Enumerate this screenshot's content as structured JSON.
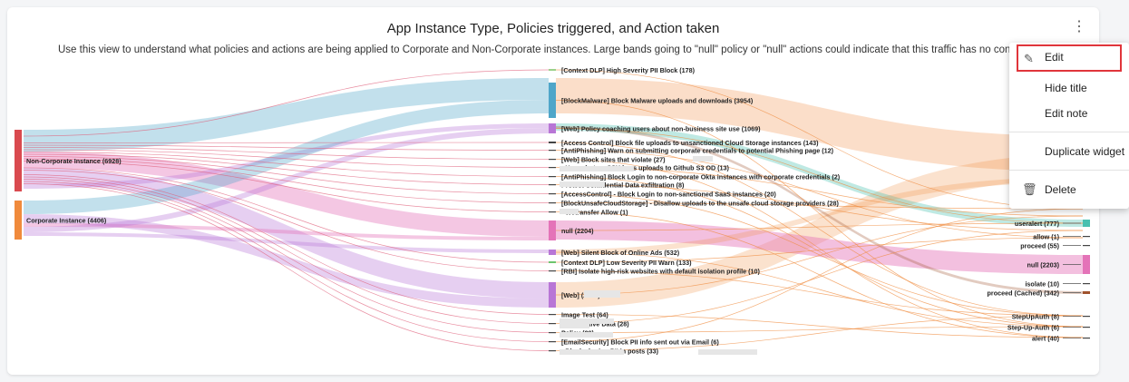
{
  "widget": {
    "title": "App Instance Type, Policies triggered, and Action taken",
    "note": "Use this view to understand what policies and actions are being applied to Corporate and Non-Corporate instances. Large bands going to \"null\" policy or \"null\" actions could indicate that this traffic has no controls aro"
  },
  "menu": {
    "kebab": "⋮",
    "edit": "Edit",
    "hide_title": "Hide title",
    "edit_note": "Edit note",
    "duplicate": "Duplicate widget",
    "delete": "Delete"
  },
  "colors": {
    "noncorp": "#d94a4f",
    "corp": "#f08a3c",
    "malware": "#4fa6c9",
    "web": "#b876d6",
    "null": "#e473b8",
    "accent_red": "#e0353b"
  },
  "chart_data": {
    "type": "sankey",
    "title": "App Instance Type, Policies triggered, and Action taken",
    "sources": [
      {
        "name": "Non-Corporate Instance (6928)",
        "value": 6928
      },
      {
        "name": "Corporate Instance (4406)",
        "value": 4406
      }
    ],
    "policies": [
      {
        "name": "[Context DLP] High Severity PII Block (178)",
        "value": 178
      },
      {
        "name": "[BlockMalware] Block Malware uploads and downloads (3954)",
        "value": 3954
      },
      {
        "name": "[Web] Policy coaching users about non-business site use (1069)",
        "value": 1069
      },
      {
        "name": "[Access Control] Block file uploads to unsanctioned Cloud Storage instances (143)",
        "value": 143
      },
      {
        "name": "[AntiPhishing] Warn on submitting corporate credentials to potential Phishing page (12)",
        "value": 12
      },
      {
        "name": "[Web] Block sites that violate (27)",
        "value": 27
      },
      {
        "name": "- User alert on SSH keys uploads to Github S3 OD (13)",
        "value": 13
      },
      {
        "name": "[AntiPhishing] Block Login to non-corporate Okta instances with corporate credentials (2)",
        "value": 2
      },
      {
        "name": "Protect Confidential Data exfiltration (8)",
        "value": 8
      },
      {
        "name": "[AccessControl] - Block Login to non-sanctioned SaaS instances (20)",
        "value": 20
      },
      {
        "name": "[BlockUnsafeCloudStorage] - Disallow uploads to the unsafe cloud storage providers (28)",
        "value": 28
      },
      {
        "name": "- Wetransfer Allow (1)",
        "value": 1
      },
      {
        "name": "null (2204)",
        "value": 2204
      },
      {
        "name": "[Web] Silent Block of Online Ads (532)",
        "value": 532
      },
      {
        "name": "[Context DLP] Low Severity PII Warn (133)",
        "value": 133
      },
      {
        "name": "[RBI] Isolate high-risk websites with default isolation profile (10)",
        "value": 10
      },
      {
        "name": "[Web] (2840)",
        "value": 2840
      },
      {
        "name": "Image Test (64)",
        "value": 64
      },
      {
        "name": "on Sensitive Data (28)",
        "value": 28
      },
      {
        "name": "Policy (29)",
        "value": 29
      },
      {
        "name": "[EmailSecurity] Block PII info sent out via Email (6)",
        "value": 6
      },
      {
        "name": "- Block sharing PII in posts (33)",
        "value": 33
      }
    ],
    "actions": [
      {
        "name": "useralert (777)",
        "value": 777
      },
      {
        "name": "allow (1)",
        "value": 1
      },
      {
        "name": "proceed (55)",
        "value": 55
      },
      {
        "name": "null (2203)",
        "value": 2203
      },
      {
        "name": "isolate (10)",
        "value": 10
      },
      {
        "name": "proceed (Cached) (342)",
        "value": 342
      },
      {
        "name": "StepUpAuth (8)",
        "value": 8
      },
      {
        "name": "Step-Up-Auth (6)",
        "value": 6
      },
      {
        "name": "alert (40)",
        "value": 40
      }
    ]
  }
}
